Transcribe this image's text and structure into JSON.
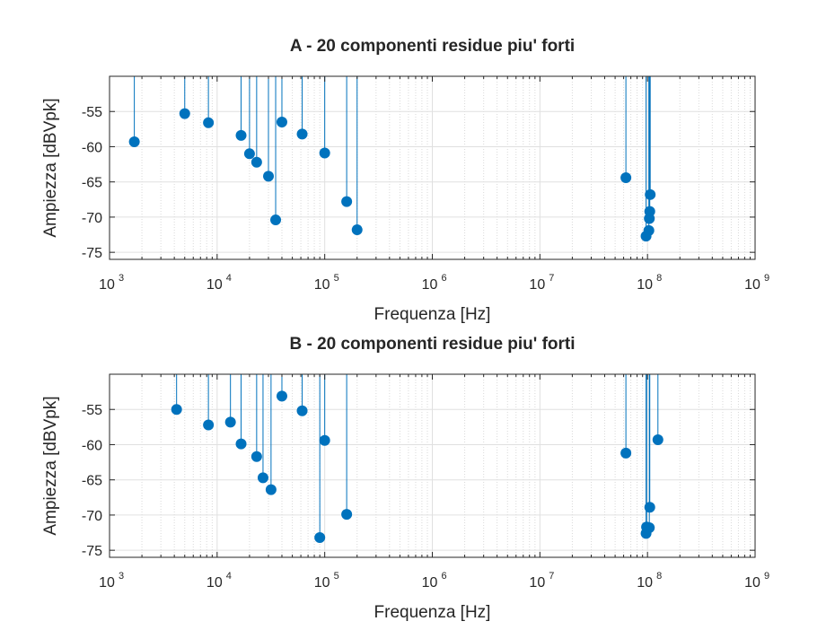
{
  "chart_data": [
    {
      "type": "stem",
      "title": "A - 20 componenti residue piu' forti",
      "xlabel": "Frequenza [Hz]",
      "ylabel": "Ampiezza [dBVpk]",
      "xscale": "log",
      "xlim": [
        1000,
        1000000000
      ],
      "ylim": [
        -76,
        -50
      ],
      "grid": true,
      "minor_grid": true,
      "xticks": [
        {
          "base": "10",
          "exp": "3"
        },
        {
          "base": "10",
          "exp": "4"
        },
        {
          "base": "10",
          "exp": "5"
        },
        {
          "base": "10",
          "exp": "6"
        },
        {
          "base": "10",
          "exp": "7"
        },
        {
          "base": "10",
          "exp": "8"
        },
        {
          "base": "10",
          "exp": "9"
        }
      ],
      "yticks": [
        "-55",
        "-60",
        "-65",
        "-70",
        "-75"
      ],
      "color": "#0072BD",
      "points": [
        {
          "x": 1700,
          "y": -59.3
        },
        {
          "x": 5000,
          "y": -55.3
        },
        {
          "x": 8300,
          "y": -56.6
        },
        {
          "x": 16700,
          "y": -58.4
        },
        {
          "x": 20000,
          "y": -61.0
        },
        {
          "x": 23300,
          "y": -62.2
        },
        {
          "x": 30000,
          "y": -64.2
        },
        {
          "x": 35000,
          "y": -70.4
        },
        {
          "x": 40000,
          "y": -56.5
        },
        {
          "x": 61700,
          "y": -58.2
        },
        {
          "x": 100000,
          "y": -60.9
        },
        {
          "x": 160000,
          "y": -67.8
        },
        {
          "x": 200000,
          "y": -71.8
        },
        {
          "x": 63000000,
          "y": -64.4
        },
        {
          "x": 97000000,
          "y": -72.7
        },
        {
          "x": 103000000,
          "y": -71.9
        },
        {
          "x": 104000000,
          "y": -70.2
        },
        {
          "x": 105000000,
          "y": -69.2
        },
        {
          "x": 106000000,
          "y": -66.8
        },
        {
          "x": 100000000,
          "y": -48.0
        }
      ]
    },
    {
      "type": "stem",
      "title": "B - 20 componenti residue piu' forti",
      "xlabel": "Frequenza [Hz]",
      "ylabel": "Ampiezza [dBVpk]",
      "xscale": "log",
      "xlim": [
        1000,
        1000000000
      ],
      "ylim": [
        -76,
        -50
      ],
      "grid": true,
      "minor_grid": true,
      "xticks": [
        {
          "base": "10",
          "exp": "3"
        },
        {
          "base": "10",
          "exp": "4"
        },
        {
          "base": "10",
          "exp": "5"
        },
        {
          "base": "10",
          "exp": "6"
        },
        {
          "base": "10",
          "exp": "7"
        },
        {
          "base": "10",
          "exp": "8"
        },
        {
          "base": "10",
          "exp": "9"
        }
      ],
      "yticks": [
        "-55",
        "-60",
        "-65",
        "-70",
        "-75"
      ],
      "color": "#0072BD",
      "points": [
        {
          "x": 4200,
          "y": -55.0
        },
        {
          "x": 8300,
          "y": -57.2
        },
        {
          "x": 13300,
          "y": -56.8
        },
        {
          "x": 16700,
          "y": -59.9
        },
        {
          "x": 23300,
          "y": -61.7
        },
        {
          "x": 26700,
          "y": -64.7
        },
        {
          "x": 31700,
          "y": -66.4
        },
        {
          "x": 40000,
          "y": -53.1
        },
        {
          "x": 61700,
          "y": -55.2
        },
        {
          "x": 90000,
          "y": -73.2
        },
        {
          "x": 100000,
          "y": -59.4
        },
        {
          "x": 160000,
          "y": -69.9
        },
        {
          "x": 63000000,
          "y": -61.2
        },
        {
          "x": 97000000,
          "y": -72.6
        },
        {
          "x": 98000000,
          "y": -71.7
        },
        {
          "x": 104000000,
          "y": -71.8
        },
        {
          "x": 105000000,
          "y": -68.9
        },
        {
          "x": 125000000,
          "y": -59.3
        },
        {
          "x": 100000000,
          "y": -48.0
        },
        {
          "x": 101000000,
          "y": -48.0
        }
      ]
    }
  ]
}
